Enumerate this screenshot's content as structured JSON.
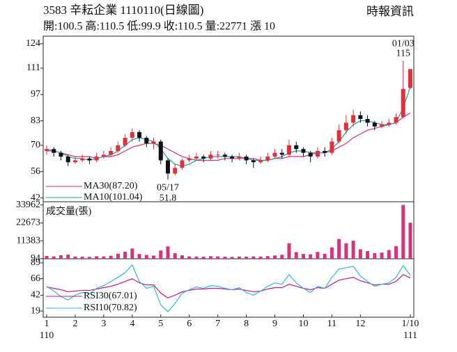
{
  "header": {
    "title": "3583  辛耘企業 1110110(日線圖)",
    "source": "時報資訊",
    "quote": "開:100.5 高:110.5 低:99.9 收:110.5 量:22771 漲 10"
  },
  "chart_data": [
    {
      "type": "candlestick",
      "ylim": [
        40,
        128
      ],
      "yticks": [
        42,
        56,
        70,
        83,
        97,
        111,
        124
      ],
      "up_color": "#e0303a",
      "down_color": "#111111",
      "candles": [
        [
          67,
          70,
          65,
          68
        ],
        [
          68,
          69,
          64,
          66
        ],
        [
          66,
          67,
          62,
          64
        ],
        [
          64,
          65,
          59,
          61
        ],
        [
          61,
          64,
          60,
          62
        ],
        [
          62,
          65,
          61,
          63
        ],
        [
          63,
          64,
          60,
          62
        ],
        [
          62,
          66,
          61,
          64
        ],
        [
          64,
          67,
          63,
          65
        ],
        [
          65,
          69,
          64,
          67
        ],
        [
          67,
          72,
          66,
          70
        ],
        [
          70,
          76,
          69,
          74
        ],
        [
          74,
          79,
          72,
          77
        ],
        [
          77,
          78,
          72,
          74
        ],
        [
          74,
          75,
          69,
          71
        ],
        [
          71,
          74,
          68,
          72
        ],
        [
          72,
          73,
          60,
          62
        ],
        [
          62,
          63,
          51.8,
          55
        ],
        [
          55,
          60,
          54,
          58
        ],
        [
          58,
          63,
          57,
          62
        ],
        [
          62,
          65,
          61,
          63
        ],
        [
          63,
          66,
          62,
          64
        ],
        [
          64,
          65,
          61,
          63
        ],
        [
          63,
          67,
          62,
          65
        ],
        [
          65,
          67,
          63,
          65
        ],
        [
          65,
          66,
          62,
          64
        ],
        [
          64,
          65,
          61,
          63
        ],
        [
          63,
          66,
          62,
          64
        ],
        [
          64,
          65,
          60,
          62
        ],
        [
          62,
          63,
          58,
          61
        ],
        [
          61,
          64,
          60,
          62
        ],
        [
          62,
          66,
          61,
          64
        ],
        [
          64,
          68,
          63,
          66
        ],
        [
          66,
          68,
          63,
          65
        ],
        [
          65,
          73,
          64,
          70
        ],
        [
          70,
          72,
          66,
          68
        ],
        [
          68,
          69,
          64,
          66
        ],
        [
          66,
          67,
          61,
          64
        ],
        [
          64,
          69,
          63,
          67
        ],
        [
          67,
          69,
          64,
          66
        ],
        [
          66,
          74,
          65,
          72
        ],
        [
          72,
          81,
          71,
          78
        ],
        [
          78,
          86,
          76,
          82
        ],
        [
          82,
          89,
          80,
          86
        ],
        [
          86,
          88,
          82,
          84
        ],
        [
          84,
          86,
          80,
          82
        ],
        [
          82,
          83,
          78,
          80
        ],
        [
          80,
          83,
          79,
          81
        ],
        [
          81,
          84,
          80,
          82
        ],
        [
          82,
          87,
          81,
          85
        ],
        [
          85,
          115,
          84,
          100
        ],
        [
          100.5,
          110.5,
          99.9,
          110.5
        ]
      ],
      "series": [
        {
          "name": "MA30(87.20)",
          "color": "#d6337a",
          "values": [
            67,
            67,
            66,
            65,
            64,
            64,
            64,
            63,
            64,
            64,
            65,
            67,
            69,
            70,
            71,
            71,
            70,
            68,
            66,
            64,
            63,
            62,
            62,
            62,
            62,
            63,
            63,
            63,
            63,
            63,
            62,
            62,
            63,
            63,
            64,
            64,
            64,
            65,
            66,
            66,
            67,
            69,
            71,
            74,
            76,
            78,
            79,
            80,
            81,
            82,
            85,
            87.2
          ]
        },
        {
          "name": "MA10(101.04)",
          "color": "#1a9fa8",
          "values": [
            68,
            67,
            66,
            64,
            63,
            63,
            62,
            63,
            64,
            65,
            67,
            70,
            73,
            74,
            73,
            72,
            68,
            63,
            60,
            59,
            60,
            62,
            63,
            64,
            64,
            64,
            64,
            64,
            63,
            62,
            62,
            62,
            63,
            64,
            66,
            67,
            67,
            66,
            66,
            66,
            68,
            72,
            77,
            81,
            83,
            83,
            82,
            81,
            81,
            82,
            90,
            101.04
          ]
        }
      ],
      "annotations": [
        {
          "date": "01/03",
          "value": 115
        },
        {
          "date": "05/17",
          "value": 51.8
        }
      ]
    },
    {
      "type": "bar",
      "name": "成交量(張)",
      "color": "#d6337a",
      "ylim": [
        0,
        36000
      ],
      "yticks": [
        94,
        11383,
        22673,
        33962
      ],
      "values": [
        1800,
        1500,
        2200,
        2600,
        1400,
        1300,
        1200,
        1600,
        1500,
        1900,
        3200,
        4500,
        6500,
        3000,
        2400,
        2000,
        5200,
        7800,
        3500,
        2200,
        1500,
        1400,
        1300,
        1600,
        1500,
        1300,
        1200,
        1400,
        1300,
        1500,
        1400,
        1700,
        2100,
        2500,
        9800,
        4200,
        3000,
        2800,
        4300,
        3100,
        7200,
        12500,
        9800,
        11400,
        6000,
        4800,
        3500,
        3900,
        5500,
        8000,
        33962,
        22771
      ]
    },
    {
      "type": "line",
      "ylim": [
        10,
        95
      ],
      "yticks": [
        19,
        42,
        66,
        89
      ],
      "categories": [
        "1",
        null,
        null,
        null,
        "2",
        null,
        null,
        null,
        "3",
        null,
        null,
        null,
        "4",
        null,
        null,
        null,
        "5",
        null,
        null,
        null,
        "6",
        null,
        null,
        null,
        "7",
        null,
        null,
        null,
        "8",
        null,
        null,
        null,
        "9",
        null,
        null,
        null,
        "10",
        null,
        null,
        null,
        "11",
        null,
        null,
        null,
        "12",
        null,
        null,
        null,
        null,
        null,
        null,
        "1/10"
      ],
      "category_years": [
        "110",
        null,
        null,
        null,
        null,
        null,
        null,
        null,
        null,
        null,
        null,
        null,
        null,
        null,
        null,
        null,
        null,
        null,
        null,
        null,
        null,
        null,
        null,
        null,
        null,
        null,
        null,
        null,
        null,
        null,
        null,
        null,
        null,
        null,
        null,
        null,
        null,
        null,
        null,
        null,
        null,
        null,
        null,
        null,
        null,
        null,
        null,
        null,
        null,
        null,
        null,
        "111"
      ],
      "series": [
        {
          "name": "RSI30(67.01)",
          "color": "#c2188a",
          "values": [
            54,
            52,
            50,
            47,
            48,
            49,
            49,
            51,
            53,
            55,
            58,
            62,
            66,
            60,
            57,
            57,
            45,
            38,
            42,
            47,
            49,
            51,
            51,
            52,
            52,
            51,
            50,
            51,
            49,
            47,
            48,
            51,
            53,
            53,
            58,
            55,
            52,
            50,
            53,
            52,
            58,
            64,
            66,
            68,
            63,
            60,
            57,
            58,
            58,
            62,
            72,
            67.01
          ]
        },
        {
          "name": "RSI10(70.82)",
          "color": "#33b5e5",
          "values": [
            55,
            48,
            40,
            35,
            42,
            46,
            44,
            52,
            56,
            62,
            68,
            75,
            86,
            62,
            52,
            55,
            28,
            18,
            30,
            45,
            50,
            54,
            52,
            56,
            55,
            52,
            50,
            53,
            46,
            42,
            48,
            55,
            60,
            58,
            72,
            60,
            52,
            46,
            55,
            52,
            68,
            80,
            82,
            84,
            70,
            62,
            55,
            58,
            60,
            68,
            85,
            70.82
          ]
        }
      ]
    }
  ]
}
